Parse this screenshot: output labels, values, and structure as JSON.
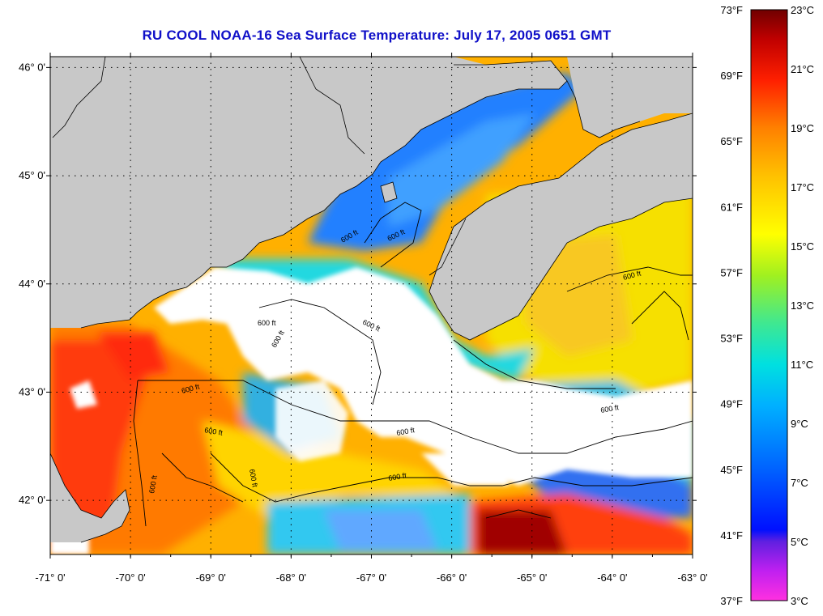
{
  "title": "RU COOL  NOAA-16  Sea Surface Temperature:  July 17, 2005 0651 GMT",
  "colors": {
    "land": "#c8c8c8",
    "cloud": "#ffffff",
    "title": "#1010c8",
    "grid": "#000000"
  },
  "map": {
    "lon_range": [
      -71,
      -63
    ],
    "lat_range": [
      41.5,
      46.1
    ],
    "lon_ticks": [
      {
        "value": -71,
        "label": "-71° 0'"
      },
      {
        "value": -70,
        "label": "-70° 0'"
      },
      {
        "value": -69,
        "label": "-69° 0'"
      },
      {
        "value": -68,
        "label": "-68° 0'"
      },
      {
        "value": -67,
        "label": "-67° 0'"
      },
      {
        "value": -66,
        "label": "-66° 0'"
      },
      {
        "value": -65,
        "label": "-65° 0'"
      },
      {
        "value": -64,
        "label": "-64° 0'"
      },
      {
        "value": -63,
        "label": "-63° 0'"
      }
    ],
    "lat_ticks": [
      {
        "value": 46,
        "label": "46° 0'"
      },
      {
        "value": 45,
        "label": "45° 0'"
      },
      {
        "value": 44,
        "label": "44° 0'"
      },
      {
        "value": 43,
        "label": "43° 0'"
      },
      {
        "value": 42,
        "label": "42° 0'"
      }
    ],
    "contour_label": "600 ft",
    "contour_labels_text": [
      "600 ft",
      "600 ft",
      "600 ft",
      "600 ft",
      "600 ft",
      "600 ft",
      "600 ft",
      "600 ft",
      "600 ft",
      "600 ft",
      "600 ft",
      "600 ft",
      "600 ft"
    ]
  },
  "colorbar": {
    "fahrenheit_labels": [
      "73°F",
      "69°F",
      "65°F",
      "61°F",
      "57°F",
      "53°F",
      "49°F",
      "45°F",
      "41°F",
      "37°F"
    ],
    "celsius_labels": [
      "23°C",
      "21°C",
      "19°C",
      "17°C",
      "15°C",
      "13°C",
      "11°C",
      "9°C",
      "7°C",
      "5°C",
      "3°C"
    ],
    "range_celsius": [
      3,
      23
    ],
    "stops": [
      "#ff30e0",
      "#a020f0",
      "#4030e0",
      "#0030ff",
      "#0080ff",
      "#00d0ff",
      "#30e0a0",
      "#a0f000",
      "#ffff00",
      "#ffb000",
      "#ff6000",
      "#ff2000",
      "#d00000",
      "#800000"
    ]
  }
}
